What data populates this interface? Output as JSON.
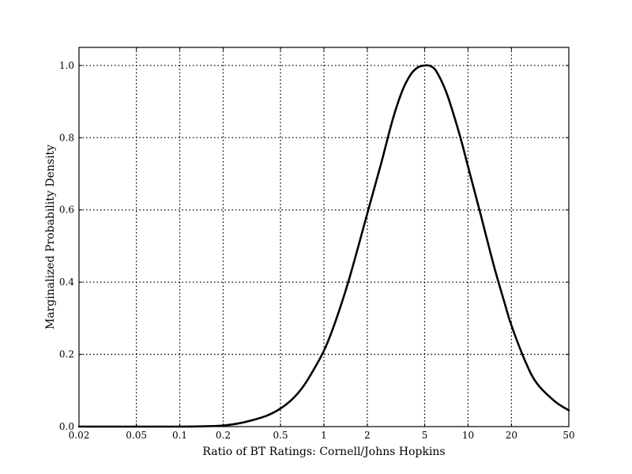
{
  "chart_data": {
    "type": "line",
    "title": "",
    "xlabel": "Ratio of BT Ratings: Cornell/Johns Hopkins",
    "ylabel": "Marginalized Probability Density",
    "xscale": "log",
    "xlim": [
      0.02,
      50
    ],
    "ylim": [
      0.0,
      1.05
    ],
    "grid": true,
    "legend": "none",
    "x_ticks": [
      0.02,
      0.05,
      0.1,
      0.2,
      0.5,
      1,
      2,
      5,
      10,
      20,
      50
    ],
    "x_tick_labels": [
      "0.02",
      "0.05",
      "0.1",
      "0.2",
      "0.5",
      "1",
      "2",
      "5",
      "10",
      "20",
      "50"
    ],
    "y_ticks": [
      0.0,
      0.2,
      0.4,
      0.6,
      0.8,
      1.0
    ],
    "y_tick_labels": [
      "0.0",
      "0.2",
      "0.4",
      "0.6",
      "0.8",
      "1.0"
    ],
    "series": [
      {
        "color": "#000000",
        "x": [
          0.02,
          0.05,
          0.1,
          0.15,
          0.2,
          0.25,
          0.3,
          0.4,
          0.5,
          0.6,
          0.7,
          0.8,
          1.0,
          1.2,
          1.5,
          2.0,
          2.5,
          3.0,
          3.5,
          4.0,
          4.5,
          5.0,
          5.3,
          5.5,
          6.0,
          7.0,
          8.0,
          9.0,
          10.0,
          12.0,
          15.0,
          18.0,
          20.0,
          25.0,
          30.0,
          40.0,
          50.0
        ],
        "y": [
          0.0,
          0.0,
          0.0,
          0.001,
          0.003,
          0.008,
          0.015,
          0.03,
          0.05,
          0.075,
          0.105,
          0.14,
          0.21,
          0.29,
          0.41,
          0.59,
          0.73,
          0.85,
          0.93,
          0.975,
          0.995,
          1.0,
          1.0,
          0.998,
          0.985,
          0.93,
          0.86,
          0.79,
          0.72,
          0.6,
          0.45,
          0.34,
          0.28,
          0.18,
          0.12,
          0.07,
          0.045
        ]
      }
    ]
  }
}
